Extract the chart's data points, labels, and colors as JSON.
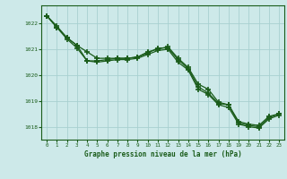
{
  "title": "Graphe pression niveau de la mer (hPa)",
  "background_color": "#cde9e9",
  "plot_bg_color": "#cde9e9",
  "grid_color": "#a8d0d0",
  "line_color": "#1a5c1a",
  "marker_color": "#1a5c1a",
  "xlim": [
    -0.5,
    23.5
  ],
  "ylim": [
    1017.5,
    1022.7
  ],
  "yticks": [
    1018,
    1019,
    1020,
    1021,
    1022
  ],
  "xticks": [
    0,
    1,
    2,
    3,
    4,
    5,
    6,
    7,
    8,
    9,
    10,
    11,
    12,
    13,
    14,
    15,
    16,
    17,
    18,
    19,
    20,
    21,
    22,
    23
  ],
  "series": [
    [
      1022.3,
      1021.9,
      1021.45,
      1021.15,
      1020.55,
      1020.55,
      1020.6,
      1020.65,
      1020.65,
      1020.7,
      1020.85,
      1021.05,
      1021.05,
      1020.6,
      1020.25,
      1019.55,
      1019.3,
      1018.9,
      1018.85,
      1018.15,
      1018.05,
      1018.0,
      1018.35,
      1018.5
    ],
    [
      1022.3,
      1021.85,
      1021.45,
      1021.15,
      1020.9,
      1020.65,
      1020.65,
      1020.65,
      1020.65,
      1020.7,
      1020.9,
      1021.0,
      1021.1,
      1020.65,
      1020.3,
      1019.65,
      1019.45,
      1018.95,
      1018.85,
      1018.2,
      1018.1,
      1018.05,
      1018.4,
      1018.5
    ],
    [
      1022.3,
      1021.85,
      1021.4,
      1021.05,
      1020.55,
      1020.5,
      1020.55,
      1020.6,
      1020.6,
      1020.65,
      1020.8,
      1020.95,
      1021.0,
      1020.5,
      1020.2,
      1019.45,
      1019.25,
      1018.85,
      1018.75,
      1018.1,
      1018.0,
      1017.95,
      1018.3,
      1018.45
    ]
  ]
}
